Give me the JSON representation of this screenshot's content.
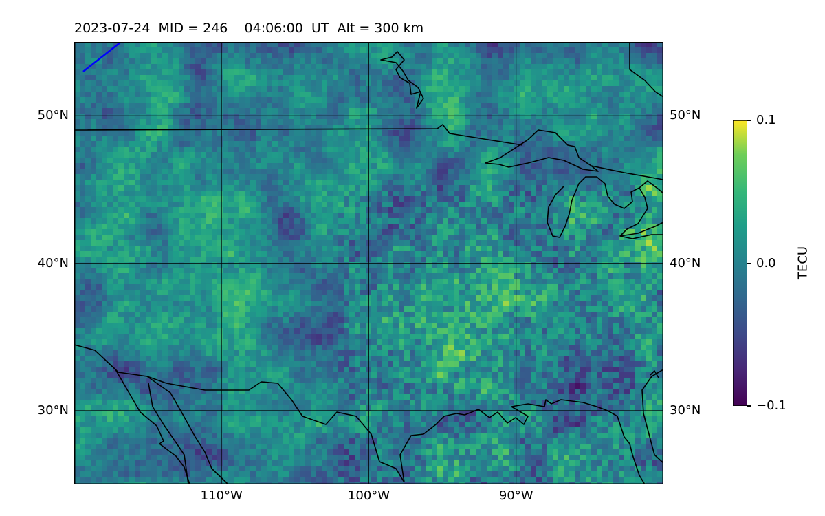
{
  "title": "2023-07-24  MID = 246    04:06:00  UT  Alt = 300 km",
  "map": {
    "lon_range": [
      -120,
      -80
    ],
    "lat_range": [
      25,
      55
    ],
    "grid": true,
    "lat_ticks": [
      {
        "value": 50,
        "label": "50°N"
      },
      {
        "value": 40,
        "label": "40°N"
      },
      {
        "value": 30,
        "label": "30°N"
      }
    ],
    "lon_ticks": [
      {
        "value": -110,
        "label": "110°W"
      },
      {
        "value": -100,
        "label": "100°W"
      },
      {
        "value": -90,
        "label": "90°W"
      }
    ],
    "field_colormap": "viridis",
    "coastline_color": "#000000",
    "track_color": "#0000ff"
  },
  "colorbar": {
    "label": "TECU",
    "min": -0.1,
    "max": 0.1,
    "ticks": [
      {
        "value": 0.1,
        "label": "0.1"
      },
      {
        "value": 0.0,
        "label": "0.0"
      },
      {
        "value": -0.1,
        "label": "−0.1"
      }
    ]
  }
}
